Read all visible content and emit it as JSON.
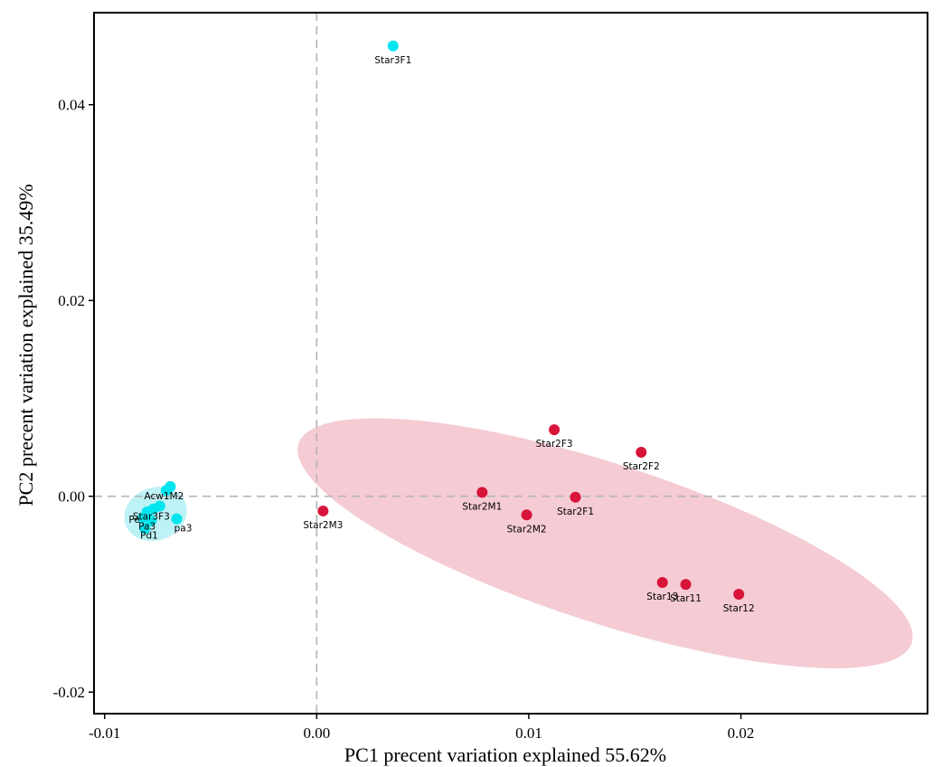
{
  "chart_data": {
    "type": "scatter",
    "xlabel": "PC1 precent variation explained 55.62%",
    "ylabel": "PC2 precent variation explained 35.49%",
    "xlim": [
      -0.0105,
      0.0288
    ],
    "ylim": [
      -0.0222,
      0.0494
    ],
    "x_ticks": [
      {
        "value": -0.01,
        "label": "-0.01"
      },
      {
        "value": 0.0,
        "label": "0.00"
      },
      {
        "value": 0.01,
        "label": "0.01"
      },
      {
        "value": 0.02,
        "label": "0.02"
      }
    ],
    "y_ticks": [
      {
        "value": -0.02,
        "label": "-0.02"
      },
      {
        "value": 0.0,
        "label": "0.00"
      },
      {
        "value": 0.02,
        "label": "0.02"
      },
      {
        "value": 0.04,
        "label": "0.04"
      }
    ],
    "reference_lines": {
      "x": 0,
      "y": 0
    },
    "grid": false,
    "legend": "none",
    "series": [
      {
        "color": "#00e5ee",
        "ellipse": {
          "cx": -0.0076,
          "cy": -0.0018,
          "rx": 0.0015,
          "ry": 0.0027,
          "angle_deg": -20,
          "fill": "#b6f1f5",
          "opacity": 0.9
        },
        "points": [
          {
            "x": 0.0036,
            "y": 0.046,
            "label": "Star3F1"
          },
          {
            "x": -0.0069,
            "y": 0.001,
            "label": ""
          },
          {
            "x": -0.0071,
            "y": 0.0006,
            "label": ""
          },
          {
            "x": -0.0074,
            "y": -0.001,
            "label": ""
          },
          {
            "x": -0.0077,
            "y": -0.0013,
            "label": ""
          },
          {
            "x": -0.008,
            "y": -0.0016,
            "label": ""
          },
          {
            "x": -0.0082,
            "y": -0.0022,
            "label": ""
          },
          {
            "x": -0.0078,
            "y": -0.0025,
            "label": ""
          },
          {
            "x": -0.0066,
            "y": -0.0023,
            "label": ""
          },
          {
            "x": -0.0081,
            "y": -0.0033,
            "label": ""
          }
        ],
        "cluster_labels": [
          {
            "x": -0.0072,
            "y": -0.0003,
            "text": "Acw1M2"
          },
          {
            "x": -0.0086,
            "y": -0.0027,
            "text": "Pe"
          },
          {
            "x": -0.0078,
            "y": -0.0024,
            "text": "Star3F3"
          },
          {
            "x": -0.008,
            "y": -0.0034,
            "text": "Pa3"
          },
          {
            "x": -0.0063,
            "y": -0.0036,
            "text": "pa3"
          },
          {
            "x": -0.0079,
            "y": -0.0043,
            "text": "Pd1"
          }
        ]
      },
      {
        "color": "#d8143a",
        "ellipse": {
          "cx": 0.0136,
          "cy": -0.0048,
          "rx": 0.0152,
          "ry": 0.0081,
          "angle_deg": 18,
          "fill": "#f5cbd4",
          "opacity": 1
        },
        "points": [
          {
            "x": 0.0112,
            "y": 0.0068,
            "label": "Star2F3"
          },
          {
            "x": 0.0153,
            "y": 0.0045,
            "label": "Star2F2"
          },
          {
            "x": 0.0078,
            "y": 0.0004,
            "label": "Star2M1"
          },
          {
            "x": 0.0122,
            "y": -0.0001,
            "label": "Star2F1"
          },
          {
            "x": 0.0099,
            "y": -0.0019,
            "label": "Star2M2"
          },
          {
            "x": 0.0003,
            "y": -0.0015,
            "label": "Star2M3"
          },
          {
            "x": 0.0163,
            "y": -0.0088,
            "label": "Star13"
          },
          {
            "x": 0.0174,
            "y": -0.009,
            "label": "Star11"
          },
          {
            "x": 0.0199,
            "y": -0.01,
            "label": "Star12"
          }
        ]
      }
    ]
  }
}
